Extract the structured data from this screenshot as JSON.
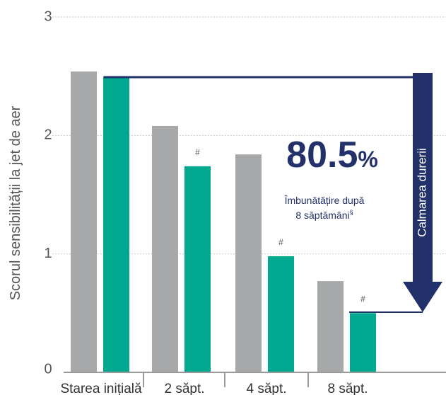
{
  "chart_data": {
    "type": "bar",
    "title": "",
    "xlabel": "",
    "ylabel": "Scorul sensibilității la jet de aer",
    "ylim": [
      0,
      3
    ],
    "yticks": [
      "0",
      "1",
      "2",
      "3"
    ],
    "grid": "dotted horizontal",
    "categories": [
      "Starea inițială",
      "2 săpt.",
      "4 săpt.",
      "8 săpt."
    ],
    "series": [
      {
        "name": "",
        "color": "#a7a8aa",
        "values": [
          2.54,
          2.08,
          1.84,
          0.77
        ]
      },
      {
        "name": "",
        "color": "#00a88f",
        "values": [
          2.5,
          1.74,
          0.98,
          0.5
        ]
      }
    ],
    "significance_marks": [
      "",
      "#",
      "#",
      "#"
    ],
    "callout": {
      "percent": "80.5",
      "percent_sign": "%",
      "line1": "Îmbunătățire după",
      "line2": "8 săptămâni",
      "footnote": "§",
      "arrow_label": "Calmarea durerii",
      "arrow_color": "#22316a"
    }
  }
}
